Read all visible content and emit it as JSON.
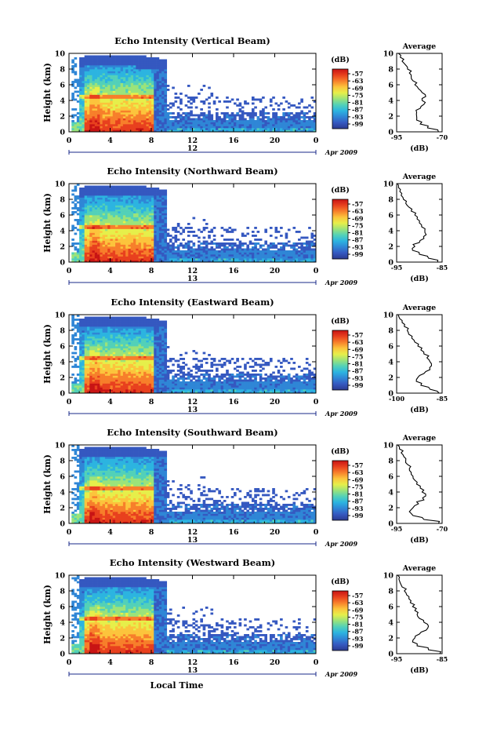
{
  "chart_data": [
    {
      "type": "heatmap",
      "title": "Echo Intensity (Vertical Beam)",
      "ylabel": "Height (km)",
      "yticks": [
        "0",
        "2",
        "4",
        "6",
        "8",
        "10"
      ],
      "xticks": [
        "0",
        "4",
        "8",
        "12",
        "16",
        "20",
        "0"
      ],
      "date_label": "12",
      "month_label": "Apr 2009",
      "colorbar_unit": "(dB)",
      "colorbar_ticks": [
        "-57",
        "-63",
        "-69",
        "-75",
        "-81",
        "-87",
        "-93",
        "-99"
      ],
      "profile": {
        "title": "Average",
        "xlabel": "(dB)",
        "xticks": [
          "-95",
          "-70"
        ],
        "yticks": [
          "0",
          "2",
          "4",
          "6",
          "8",
          "10"
        ],
        "xlim": [
          -95,
          -70
        ],
        "y": [
          0,
          0.5,
          1,
          1.5,
          2,
          2.5,
          3,
          3.5,
          4,
          4.5,
          5,
          5.5,
          6,
          6.5,
          7,
          7.5,
          8,
          8.5,
          9,
          9.5,
          10
        ],
        "x": [
          -72,
          -78,
          -82,
          -84,
          -84,
          -84,
          -82,
          -80,
          -81,
          -79,
          -81,
          -83,
          -85,
          -86,
          -87,
          -88,
          -89,
          -90,
          -92,
          -93,
          -94
        ]
      }
    },
    {
      "type": "heatmap",
      "title": "Echo Intensity (Northward Beam)",
      "ylabel": "Height (km)",
      "yticks": [
        "0",
        "2",
        "4",
        "6",
        "8",
        "10"
      ],
      "xticks": [
        "0",
        "4",
        "8",
        "12",
        "16",
        "20",
        "0"
      ],
      "date_label": "13",
      "month_label": "Apr 2009",
      "colorbar_unit": "(dB)",
      "colorbar_ticks": [
        "-57",
        "-63",
        "-69",
        "-75",
        "-81",
        "-87",
        "-93",
        "-99"
      ],
      "profile": {
        "title": "Average",
        "xlabel": "(dB)",
        "xticks": [
          "-95",
          "-85"
        ],
        "yticks": [
          "0",
          "2",
          "4",
          "6",
          "8",
          "10"
        ],
        "xlim": [
          -95,
          -85
        ],
        "y": [
          0,
          0.5,
          1,
          1.5,
          2,
          2.5,
          3,
          3.5,
          4,
          4.5,
          5,
          5.5,
          6,
          6.5,
          7,
          7.5,
          8,
          8.5,
          9,
          9.5,
          10
        ],
        "x": [
          -86,
          -88,
          -90,
          -91.5,
          -91,
          -90,
          -89,
          -88.5,
          -88.8,
          -89.5,
          -90,
          -90.5,
          -91,
          -91.8,
          -92.3,
          -93,
          -93.5,
          -94,
          -94.3,
          -94.6,
          -94.8
        ]
      }
    },
    {
      "type": "heatmap",
      "title": "Echo Intensity (Eastward Beam)",
      "ylabel": "Height (km)",
      "yticks": [
        "0",
        "2",
        "4",
        "6",
        "8",
        "10"
      ],
      "xticks": [
        "0",
        "4",
        "8",
        "12",
        "16",
        "20",
        "0"
      ],
      "date_label": "13",
      "month_label": "Apr 2009",
      "colorbar_unit": "(dB)",
      "colorbar_ticks": [
        "-57",
        "-63",
        "-69",
        "-75",
        "-81",
        "-87",
        "-93",
        "-99"
      ],
      "profile": {
        "title": "Average",
        "xlabel": "(dB)",
        "xticks": [
          "-100",
          "-85"
        ],
        "yticks": [
          "0",
          "2",
          "4",
          "6",
          "8",
          "10"
        ],
        "xlim": [
          -100,
          -85
        ],
        "y": [
          0,
          0.5,
          1,
          1.5,
          2,
          2.5,
          3,
          3.5,
          4,
          4.5,
          5,
          5.5,
          6,
          6.5,
          7,
          7.5,
          8,
          8.5,
          9,
          9.5,
          10
        ],
        "x": [
          -86,
          -89,
          -92,
          -93.5,
          -93,
          -91,
          -89,
          -88.5,
          -89,
          -90,
          -91,
          -92,
          -93,
          -94,
          -95,
          -96,
          -96.5,
          -97.5,
          -98.2,
          -99,
          -99.5
        ]
      }
    },
    {
      "type": "heatmap",
      "title": "Echo Intensity (Southward Beam)",
      "ylabel": "Height (km)",
      "yticks": [
        "0",
        "2",
        "4",
        "6",
        "8",
        "10"
      ],
      "xticks": [
        "0",
        "4",
        "8",
        "12",
        "16",
        "20",
        "0"
      ],
      "date_label": "13",
      "month_label": "Apr 2009",
      "colorbar_unit": "(dB)",
      "colorbar_ticks": [
        "-57",
        "-63",
        "-69",
        "-75",
        "-81",
        "-87",
        "-93",
        "-99"
      ],
      "profile": {
        "title": "Average",
        "xlabel": "(dB)",
        "xticks": [
          "-95",
          "-70"
        ],
        "yticks": [
          "0",
          "2",
          "4",
          "6",
          "8",
          "10"
        ],
        "xlim": [
          -95,
          -70
        ],
        "y": [
          0,
          0.5,
          1,
          1.5,
          2,
          2.5,
          3,
          3.5,
          4,
          4.5,
          5,
          5.5,
          6,
          6.5,
          7,
          7.5,
          8,
          8.5,
          9,
          9.5,
          10
        ],
        "x": [
          -72,
          -80,
          -86,
          -88,
          -86,
          -83,
          -80,
          -79,
          -81,
          -82,
          -84,
          -85,
          -86,
          -87,
          -88,
          -89,
          -90,
          -91,
          -92.5,
          -93.5,
          -94.5
        ]
      }
    },
    {
      "type": "heatmap",
      "title": "Echo Intensity (Westward Beam)",
      "ylabel": "Height (km)",
      "xlabel": "Local Time",
      "yticks": [
        "0",
        "2",
        "4",
        "6",
        "8",
        "10"
      ],
      "xticks": [
        "0",
        "4",
        "8",
        "12",
        "16",
        "20",
        "0"
      ],
      "date_label": "13",
      "month_label": "Apr 2009",
      "colorbar_unit": "(dB)",
      "colorbar_ticks": [
        "-57",
        "-63",
        "-69",
        "-75",
        "-81",
        "-87",
        "-93",
        "-99"
      ],
      "profile": {
        "title": "Average",
        "xlabel": "(dB)",
        "xticks": [
          "-95",
          "-85"
        ],
        "yticks": [
          "0",
          "2",
          "4",
          "6",
          "8",
          "10"
        ],
        "xlim": [
          -95,
          -85
        ],
        "y": [
          0,
          0.5,
          1,
          1.5,
          2,
          2.5,
          3,
          3.5,
          4,
          4.5,
          5,
          5.5,
          6,
          6.5,
          7,
          7.5,
          8,
          8.5,
          9,
          9.5,
          10
        ],
        "x": [
          -85.5,
          -88,
          -90.5,
          -91.5,
          -91,
          -90,
          -88.5,
          -88,
          -89,
          -90,
          -90.5,
          -91,
          -91.5,
          -92,
          -92.3,
          -92.8,
          -93.3,
          -93.8,
          -94.2,
          -94.5,
          -94.8
        ]
      }
    }
  ],
  "colormap": [
    "#2b3a8f",
    "#3558c0",
    "#2f86d6",
    "#2cb4e0",
    "#53d1b8",
    "#9be37a",
    "#e6ef4a",
    "#fcc43c",
    "#f77f2b",
    "#e8401e",
    "#c81414"
  ]
}
